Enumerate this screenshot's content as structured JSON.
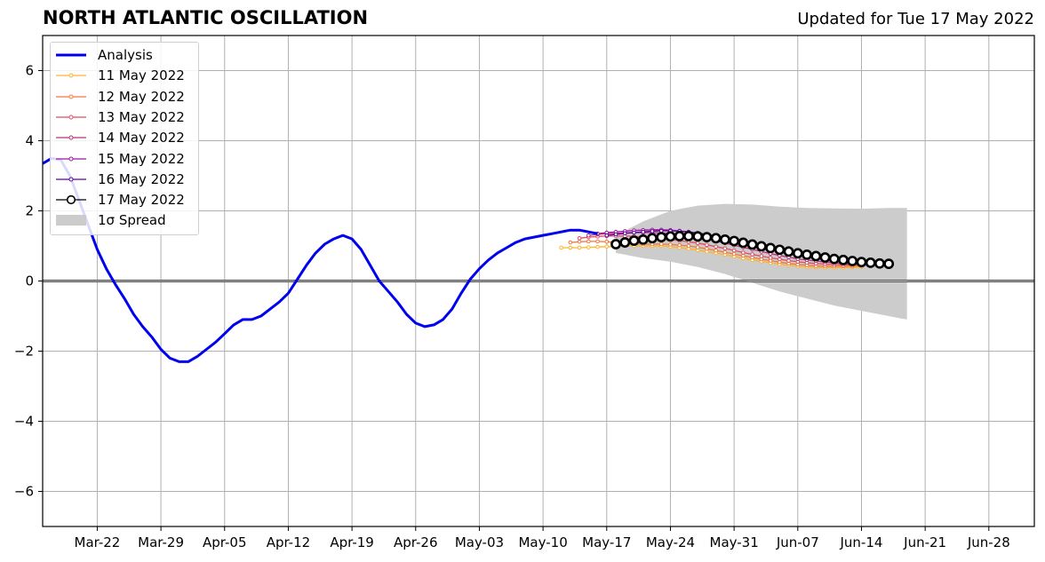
{
  "header": {
    "title": "NORTH ATLANTIC OSCILLATION",
    "updated": "Updated for Tue 17 May 2022"
  },
  "chart_data": {
    "type": "line",
    "x_axis": {
      "type": "date",
      "xlim": [
        "2022-03-16",
        "2022-07-03"
      ],
      "tick_labels": [
        "Mar-22",
        "Mar-29",
        "Apr-05",
        "Apr-12",
        "Apr-19",
        "Apr-26",
        "May-03",
        "May-10",
        "May-17",
        "May-24",
        "May-31",
        "Jun-07",
        "Jun-14",
        "Jun-21",
        "Jun-28"
      ],
      "tick_dates": [
        "2022-03-22",
        "2022-03-29",
        "2022-04-05",
        "2022-04-12",
        "2022-04-19",
        "2022-04-26",
        "2022-05-03",
        "2022-05-10",
        "2022-05-17",
        "2022-05-24",
        "2022-05-31",
        "2022-06-07",
        "2022-06-14",
        "2022-06-21",
        "2022-06-28"
      ]
    },
    "y_axis": {
      "ylim": [
        -7,
        7
      ],
      "ticks": [
        -6,
        -4,
        -2,
        0,
        2,
        4,
        6
      ],
      "tick_labels": [
        "−6",
        "−4",
        "−2",
        "0",
        "2",
        "4",
        "6"
      ]
    },
    "grid": true,
    "zero_line": true,
    "legend_position": "top-left",
    "analysis": {
      "name": "Analysis",
      "color": "#0000ee",
      "x": [
        "2022-03-16",
        "2022-03-17",
        "2022-03-18",
        "2022-03-19",
        "2022-03-20",
        "2022-03-21",
        "2022-03-22",
        "2022-03-23",
        "2022-03-24",
        "2022-03-25",
        "2022-03-26",
        "2022-03-27",
        "2022-03-28",
        "2022-03-29",
        "2022-03-30",
        "2022-03-31",
        "2022-04-01",
        "2022-04-02",
        "2022-04-03",
        "2022-04-04",
        "2022-04-05",
        "2022-04-06",
        "2022-04-07",
        "2022-04-08",
        "2022-04-09",
        "2022-04-10",
        "2022-04-11",
        "2022-04-12",
        "2022-04-13",
        "2022-04-14",
        "2022-04-15",
        "2022-04-16",
        "2022-04-17",
        "2022-04-18",
        "2022-04-19",
        "2022-04-20",
        "2022-04-21",
        "2022-04-22",
        "2022-04-23",
        "2022-04-24",
        "2022-04-25",
        "2022-04-26",
        "2022-04-27",
        "2022-04-28",
        "2022-04-29",
        "2022-04-30",
        "2022-05-01",
        "2022-05-02",
        "2022-05-03",
        "2022-05-04",
        "2022-05-05",
        "2022-05-06",
        "2022-05-07",
        "2022-05-08",
        "2022-05-09",
        "2022-05-10",
        "2022-05-11",
        "2022-05-12",
        "2022-05-13",
        "2022-05-14",
        "2022-05-15",
        "2022-05-16"
      ],
      "y": [
        3.35,
        3.5,
        3.45,
        3.0,
        2.3,
        1.6,
        0.9,
        0.35,
        -0.1,
        -0.5,
        -0.95,
        -1.3,
        -1.6,
        -1.95,
        -2.2,
        -2.3,
        -2.3,
        -2.15,
        -1.95,
        -1.75,
        -1.5,
        -1.25,
        -1.1,
        -1.1,
        -1.0,
        -0.8,
        -0.6,
        -0.35,
        0.05,
        0.45,
        0.8,
        1.05,
        1.2,
        1.3,
        1.2,
        0.9,
        0.45,
        0.0,
        -0.3,
        -0.6,
        -0.95,
        -1.2,
        -1.3,
        -1.25,
        -1.1,
        -0.8,
        -0.35,
        0.05,
        0.35,
        0.6,
        0.8,
        0.95,
        1.1,
        1.2,
        1.25,
        1.3,
        1.35,
        1.4,
        1.45,
        1.45,
        1.4,
        1.35
      ]
    },
    "series": [
      {
        "name": "11 May 2022",
        "color": "#fcb42a",
        "x_start": "2022-05-12",
        "y": [
          0.95,
          0.95,
          0.95,
          0.96,
          0.97,
          0.98,
          0.98,
          1.0,
          1.0,
          1.0,
          1.0,
          1.0,
          0.98,
          0.95,
          0.92,
          0.88,
          0.84,
          0.8,
          0.75,
          0.7,
          0.65,
          0.6,
          0.56,
          0.52,
          0.48,
          0.45,
          0.42,
          0.4,
          0.39,
          0.38,
          0.38,
          0.38,
          0.39,
          0.4
        ]
      },
      {
        "name": "12 May 2022",
        "color": "#f0793a",
        "x_start": "2022-05-13",
        "y": [
          1.1,
          1.12,
          1.13,
          1.13,
          1.12,
          1.1,
          1.08,
          1.06,
          1.05,
          1.05,
          1.05,
          1.04,
          1.02,
          1.0,
          0.96,
          0.92,
          0.87,
          0.82,
          0.77,
          0.72,
          0.67,
          0.62,
          0.58,
          0.54,
          0.5,
          0.47,
          0.45,
          0.43,
          0.42,
          0.42,
          0.42,
          0.42,
          0.43
        ]
      },
      {
        "name": "13 May 2022",
        "color": "#db4f62",
        "x_start": "2022-05-14",
        "y": [
          1.22,
          1.25,
          1.27,
          1.28,
          1.28,
          1.28,
          1.27,
          1.25,
          1.23,
          1.2,
          1.18,
          1.15,
          1.12,
          1.08,
          1.03,
          0.98,
          0.93,
          0.87,
          0.81,
          0.76,
          0.71,
          0.66,
          0.62,
          0.58,
          0.55,
          0.52,
          0.5,
          0.48,
          0.47,
          0.46,
          0.46,
          0.46
        ]
      },
      {
        "name": "14 May 2022",
        "color": "#b8317b",
        "x_start": "2022-05-15",
        "y": [
          1.3,
          1.33,
          1.35,
          1.36,
          1.37,
          1.38,
          1.38,
          1.38,
          1.37,
          1.35,
          1.32,
          1.28,
          1.24,
          1.19,
          1.14,
          1.08,
          1.02,
          0.96,
          0.9,
          0.84,
          0.78,
          0.73,
          0.68,
          0.63,
          0.6,
          0.57,
          0.54,
          0.52,
          0.5,
          0.49,
          0.48
        ]
      },
      {
        "name": "15 May 2022",
        "color": "#9c179e",
        "x_start": "2022-05-16",
        "y": [
          1.35,
          1.38,
          1.4,
          1.42,
          1.44,
          1.45,
          1.46,
          1.46,
          1.45,
          1.43,
          1.4,
          1.36,
          1.32,
          1.27,
          1.21,
          1.15,
          1.09,
          1.03,
          0.97,
          0.91,
          0.85,
          0.79,
          0.74,
          0.69,
          0.65,
          0.61,
          0.58,
          0.55,
          0.53,
          0.51
        ]
      },
      {
        "name": "16 May 2022",
        "color": "#5c01a6",
        "x_start": "2022-05-17",
        "y": [
          1.3,
          1.33,
          1.36,
          1.38,
          1.4,
          1.42,
          1.43,
          1.43,
          1.42,
          1.4,
          1.37,
          1.33,
          1.28,
          1.23,
          1.17,
          1.11,
          1.05,
          0.99,
          0.93,
          0.87,
          0.81,
          0.76,
          0.71,
          0.67,
          0.63,
          0.59,
          0.56,
          0.54,
          0.52
        ]
      },
      {
        "name": "17 May 2022",
        "color": "#000000",
        "x_start": "2022-05-18",
        "y": [
          1.05,
          1.1,
          1.15,
          1.18,
          1.22,
          1.25,
          1.27,
          1.28,
          1.28,
          1.27,
          1.25,
          1.22,
          1.18,
          1.14,
          1.09,
          1.04,
          0.99,
          0.94,
          0.89,
          0.84,
          0.79,
          0.75,
          0.71,
          0.67,
          0.63,
          0.6,
          0.57,
          0.54,
          0.52,
          0.5,
          0.49
        ]
      }
    ],
    "spread": {
      "name": "1σ Spread",
      "color": "#cccccc",
      "x": [
        "2022-05-18",
        "2022-05-21",
        "2022-05-24",
        "2022-05-27",
        "2022-05-30",
        "2022-06-02",
        "2022-06-05",
        "2022-06-08",
        "2022-06-11",
        "2022-06-14",
        "2022-06-17",
        "2022-06-19"
      ],
      "upper": [
        1.3,
        1.7,
        2.0,
        2.15,
        2.2,
        2.18,
        2.12,
        2.08,
        2.07,
        2.06,
        2.08,
        2.08
      ],
      "lower": [
        0.8,
        0.65,
        0.55,
        0.4,
        0.2,
        -0.05,
        -0.3,
        -0.5,
        -0.7,
        -0.85,
        -1.0,
        -1.1
      ]
    }
  },
  "legend": {
    "items": [
      {
        "label": "Analysis",
        "color": "#0000ee",
        "kind": "thick-line"
      },
      {
        "label": "11 May 2022",
        "color": "#fcb42a",
        "kind": "marker-line"
      },
      {
        "label": "12 May 2022",
        "color": "#f0793a",
        "kind": "marker-line"
      },
      {
        "label": "13 May 2022",
        "color": "#db4f62",
        "kind": "marker-line"
      },
      {
        "label": "14 May 2022",
        "color": "#b8317b",
        "kind": "marker-line"
      },
      {
        "label": "15 May 2022",
        "color": "#9c179e",
        "kind": "marker-line"
      },
      {
        "label": "16 May 2022",
        "color": "#5c01a6",
        "kind": "marker-line"
      },
      {
        "label": "17 May 2022",
        "color": "#000000",
        "kind": "open-circle"
      },
      {
        "label": "1σ Spread",
        "color": "#cccccc",
        "kind": "patch"
      }
    ]
  }
}
